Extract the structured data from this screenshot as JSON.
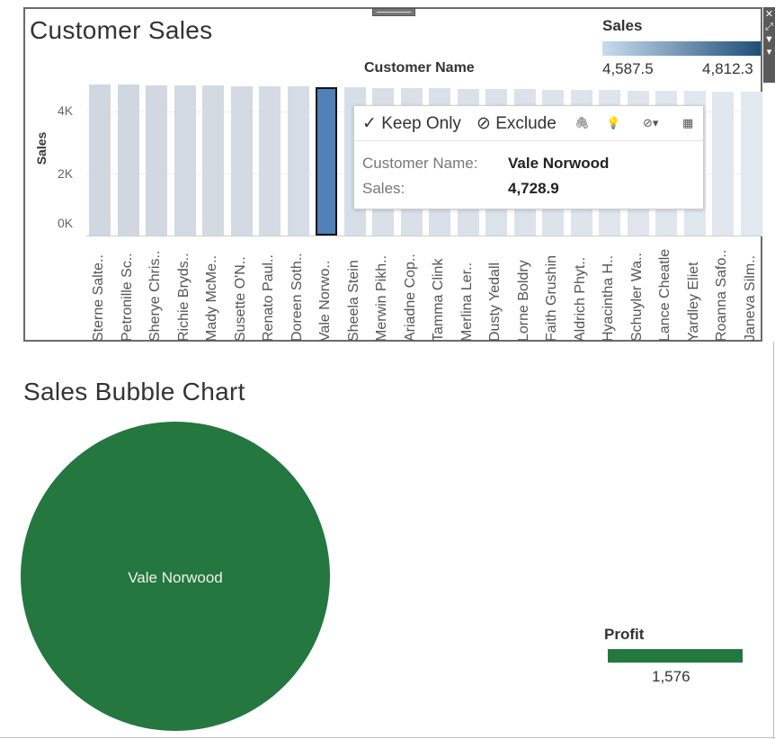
{
  "dashboard": {
    "customer_sales_title": "Customer Sales",
    "bubble_title": "Sales Bubble Chart"
  },
  "legend_sales": {
    "title": "Sales",
    "min_label": "4,587.5",
    "max_label": "4,812.3",
    "color_low": "#c8dcee",
    "color_high": "#1f4e79"
  },
  "chart_data": [
    {
      "type": "bar",
      "title": "Customer Sales",
      "xlabel": "Customer Name",
      "ylabel": "Sales",
      "ylim": [
        0,
        5000
      ],
      "yticks": [
        "0K",
        "2K",
        "4K"
      ],
      "categories": [
        "Sterne Salte..",
        "Petronille Sc..",
        "Sherye Chris..",
        "Richie Bryds..",
        "Mady McMe..",
        "Susette O'N..",
        "Renato Paul..",
        "Doreen Soth..",
        "Vale Norwo..",
        "Sheela Stein",
        "Merwin Pikh..",
        "Ariadne Cop..",
        "Tamma Clink",
        "Merlina Ler..",
        "Dusty Yedall",
        "Lorne Boldry",
        "Faith Grushin",
        "Aldrich Phyt..",
        "Hyacintha H..",
        "Schuyler Wa..",
        "Lance Cheatle",
        "Yardley Eliet",
        "Roanna Safo..",
        "Janeva Silm.."
      ],
      "values": [
        4812.3,
        4806.0,
        4795.0,
        4786.0,
        4779.0,
        4768.0,
        4757.0,
        4741.0,
        4728.9,
        4720.0,
        4708.0,
        4699.0,
        4689.0,
        4680.0,
        4671.0,
        4662.0,
        4651.0,
        4642.0,
        4633.0,
        4624.0,
        4615.0,
        4606.0,
        4596.0,
        4587.5
      ],
      "selected_index": 8
    },
    {
      "type": "scatter",
      "title": "Sales Bubble Chart",
      "points": [
        {
          "label": "Vale Norwood",
          "sales": 4728.9,
          "profit": 1576
        }
      ]
    }
  ],
  "tooltip": {
    "keep_only_label": "✓ Keep Only",
    "exclude_label": "⊘ Exclude",
    "row1_key": "Customer Name:",
    "row1_value": "Vale Norwood",
    "row2_key": "Sales:",
    "row2_value": "4,728.9"
  },
  "legend_profit": {
    "title": "Profit",
    "value": "1,576",
    "color": "#23773f"
  }
}
